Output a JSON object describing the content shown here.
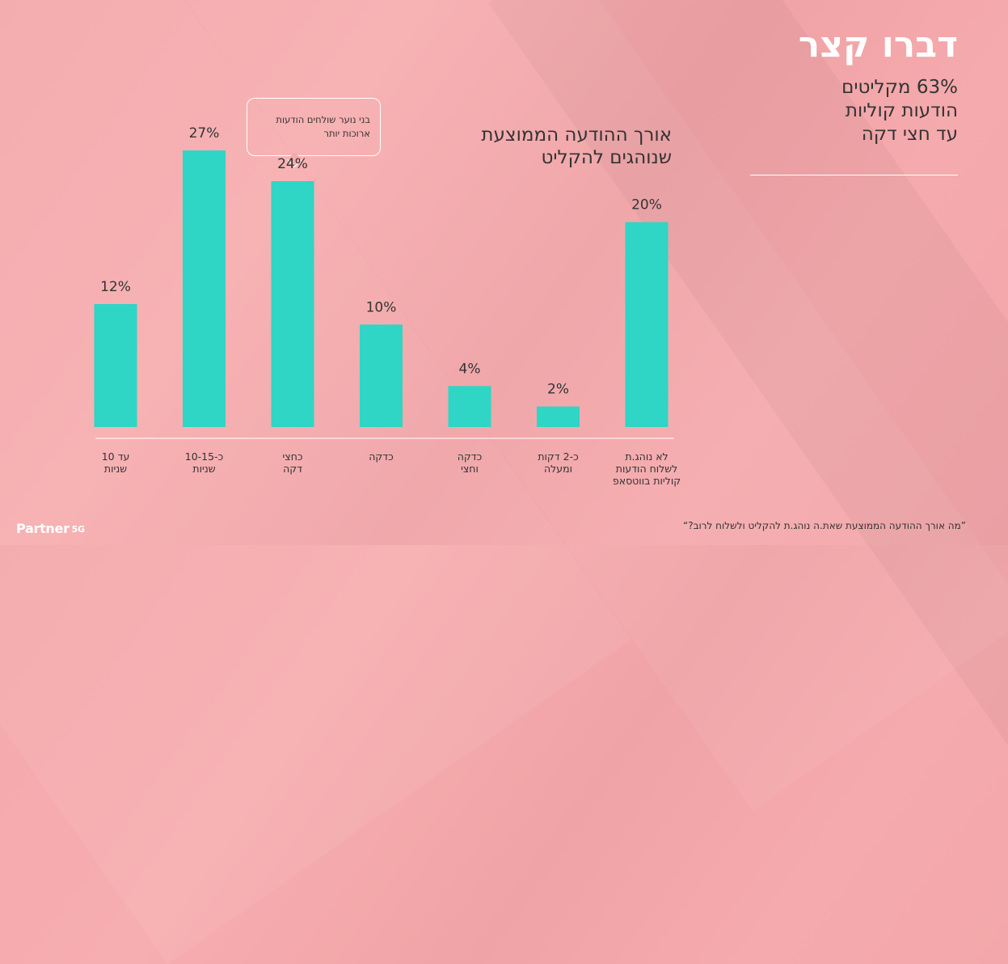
{
  "headline": "דברו קצר",
  "stat_lines": [
    "63% מקליטים",
    "הודעות קוליות",
    "עד חצי דקה"
  ],
  "callout_lines": [
    "בני נוער שולחים הודעות",
    "ארוכות יותר"
  ],
  "footnote": "”מה אורך ההודעה הממוצעת שאת.ה נוהג.ת להקליט ולשלוח לרוב?“",
  "logo": {
    "name": "Partner",
    "suffix": "5G"
  },
  "colors": {
    "bar": "#2fd5c5",
    "text": "#333333",
    "accent": "#ffffff"
  },
  "chart_data": {
    "type": "bar",
    "title": [
      "אורך ההודעה הממוצעת",
      "שנוהגים להקליט"
    ],
    "categories": [
      [
        "עד 10",
        "שניות"
      ],
      [
        "כ-10-15",
        "שניות"
      ],
      [
        "כחצי",
        "דקה"
      ],
      [
        "כדקה"
      ],
      [
        "כדקה",
        "וחצי"
      ],
      [
        "כ-2 דקות",
        "ומעלה"
      ],
      [
        "לא נוהג.ת",
        "לשלוח הודעות",
        "קוליות בווטסאפ"
      ]
    ],
    "values": [
      12,
      27,
      24,
      10,
      4,
      2,
      20
    ],
    "value_labels": [
      "12%",
      "27%",
      "24%",
      "10%",
      "4%",
      "2%",
      "20%"
    ],
    "ylim": [
      0,
      30
    ],
    "grid": false,
    "legend": "none"
  }
}
